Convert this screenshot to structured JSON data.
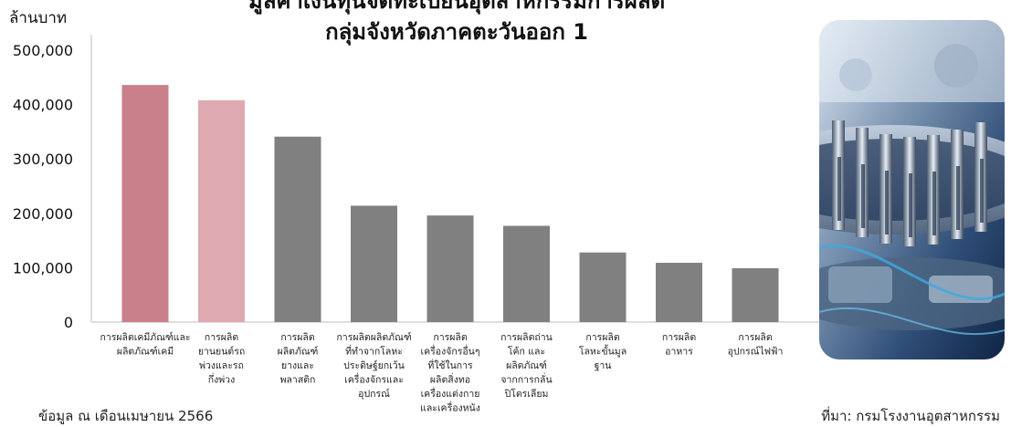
{
  "chart_data": {
    "type": "bar",
    "title_lines": [
      "มูลค่าเงินทุนจดทะเบียนอุตสาหกรรมการผลิต",
      "กลุ่มจังหวัดภาคตะวันออก 1"
    ],
    "ylabel": "ล้านบาท",
    "ylim": [
      0,
      500000
    ],
    "yticks": [
      "0",
      "100,000",
      "200,000",
      "300,000",
      "400,000",
      "500,000"
    ],
    "grid": false,
    "categories": [
      [
        "การผลิตเคมีภัณฑ์และ",
        "ผลิตภัณฑ์เคมี"
      ],
      [
        "การผลิต",
        "ยานยนต์รถ",
        "พ่วงและรถ",
        "กึ่งพ่วง"
      ],
      [
        "การผลิต",
        "ผลิตภัณฑ์",
        "ยางและ",
        "พลาสติก"
      ],
      [
        "การผลิตผลิตภัณฑ์",
        "ที่ทำจากโลหะ",
        "ประดิษฐ์ยกเว้น",
        "เครื่องจักรและ",
        "อุปกรณ์"
      ],
      [
        "การผลิต",
        "เครื่องจักรอื่นๆ",
        "ที่ใช้ในการ",
        "ผลิตสิ่งทอ",
        "เครื่องแต่งกาย",
        "และเครื่องหนัง"
      ],
      [
        "การผลิตถ่าน",
        "โค้ก และ",
        "ผลิตภัณฑ์",
        "จากการกลั่น",
        "ปิโตรเลียม"
      ],
      [
        "การผลิต",
        "โลหะขั้นมูล",
        "ฐาน"
      ],
      [
        "การผลิต",
        "อาหาร"
      ],
      [
        "การผลิต",
        "อุปกรณ์ไฟฟ้า"
      ]
    ],
    "values": [
      436000,
      408000,
      341000,
      214000,
      196000,
      177000,
      128000,
      109000,
      99000
    ],
    "colors": [
      "#c9808a",
      "#dfa9b1",
      "#808080",
      "#808080",
      "#808080",
      "#808080",
      "#808080",
      "#808080",
      "#808080"
    ]
  },
  "footer": {
    "note": "ข้อมูล ณ เดือนเมษายน 2566",
    "source": "ที่มา: กรมโรงงานอุตสาหกรรม"
  },
  "photo": {
    "icon": "industrial-machinery-photo"
  }
}
